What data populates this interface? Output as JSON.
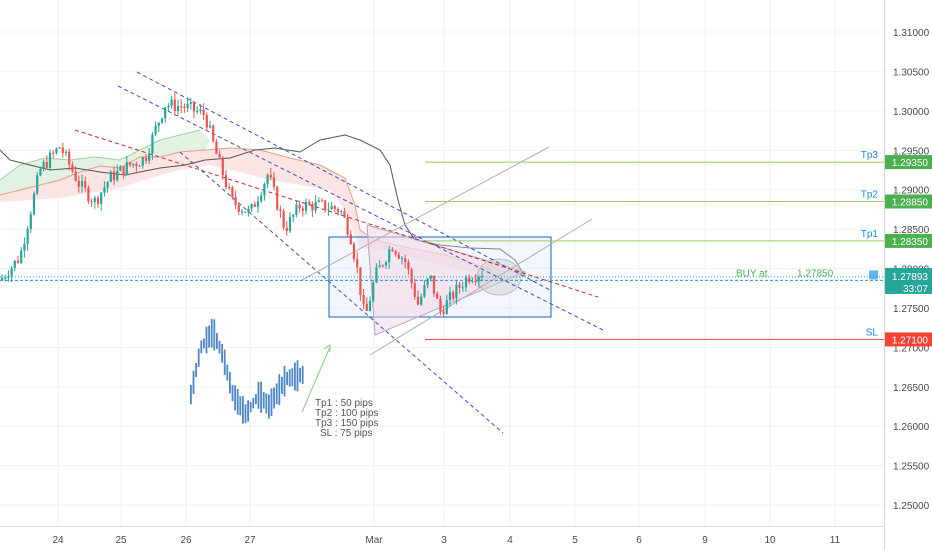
{
  "colors": {
    "up": "#26a69a",
    "down": "#ef5350",
    "green_label": "#4caf50",
    "red_label": "#f44336",
    "blue_label": "#448aff",
    "line_label": "#2196f3",
    "trend_blue": "#3f51b5",
    "trend_red": "#c62828",
    "cloud_green": "#c8e6c9",
    "cloud_red": "#ffcdd2",
    "box_blue": "#1565c0",
    "projection_blue": "#4e87c7"
  },
  "price_axis": {
    "ticks": [
      "1.31000",
      "1.30500",
      "1.30000",
      "1.29500",
      "1.29000",
      "1.28500",
      "1.28000",
      "1.27500",
      "1.27000",
      "1.26500",
      "1.26000",
      "1.25500",
      "1.25000"
    ],
    "tick_values": [
      1.31,
      1.305,
      1.3,
      1.295,
      1.29,
      1.285,
      1.28,
      1.275,
      1.27,
      1.265,
      1.26,
      1.255,
      1.25
    ]
  },
  "time_axis": {
    "labels": [
      "24",
      "25",
      "26",
      "27",
      "Mar",
      "3",
      "4",
      "5",
      "6",
      "9",
      "10",
      "11"
    ]
  },
  "levels": [
    {
      "key": "tp3",
      "label": "Tp3",
      "price": 1.2935,
      "price_text": "1.29350",
      "badge_color": "#4caf50"
    },
    {
      "key": "tp2",
      "label": "Tp2",
      "price": 1.2885,
      "price_text": "1.28850",
      "badge_color": "#4caf50"
    },
    {
      "key": "tp1",
      "label": "Tp1",
      "price": 1.2835,
      "price_text": "1.28350",
      "badge_color": "#4caf50"
    },
    {
      "key": "entry",
      "label": "BUY at",
      "price": 1.2785,
      "price_text": "1.27850",
      "badge_color": "#448aff"
    },
    {
      "key": "sl",
      "label": "SL",
      "price": 1.271,
      "price_text": "1.27100",
      "badge_color": "#f44336"
    }
  ],
  "entry_inline_value": "1.27850",
  "current_price": {
    "value": 1.27893,
    "price_text": "1.27893",
    "countdown": "33:07",
    "badge_color": "#26a69a"
  },
  "notes": [
    "Tp1 : 50 pips",
    "Tp2 : 100 pips",
    "Tp3 : 150 pips",
    "SL : 75 pips"
  ],
  "chart_data": {
    "type": "candlestick",
    "symbol_pair_hint": "",
    "ylim": [
      1.2465,
      1.3135
    ],
    "x_labels": [
      "24",
      "25",
      "26",
      "27",
      "Mar",
      "3",
      "4",
      "5",
      "6",
      "9",
      "10",
      "11"
    ],
    "key_levels": {
      "tp3": 1.2935,
      "tp2": 1.2885,
      "tp1": 1.2835,
      "buy": 1.2785,
      "sl": 1.271
    },
    "last_price": 1.27893,
    "approx_path": [
      {
        "x": "24",
        "price": 1.2785
      },
      {
        "x": "25",
        "price": 1.2905
      },
      {
        "x": "26",
        "price": 1.3005
      },
      {
        "x": "27",
        "price": 1.2905
      },
      {
        "x": "Mar",
        "price": 1.2895
      },
      {
        "x": "Mar",
        "price": 1.2725
      },
      {
        "x": "3",
        "price": 1.277
      },
      {
        "x": "3",
        "price": 1.279
      }
    ]
  }
}
